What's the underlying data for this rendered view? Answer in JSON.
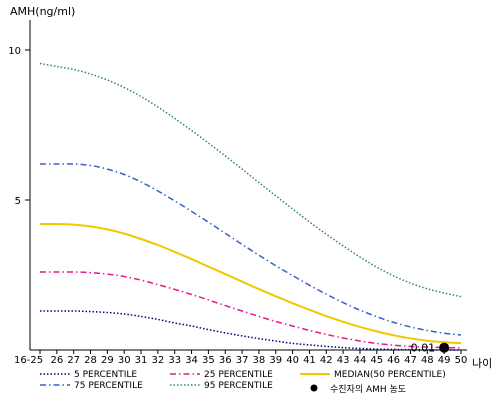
{
  "chart_data": {
    "type": "line",
    "ylabel": "AMH(ng/ml)",
    "xlabel": "나이",
    "ylim": [
      0,
      11
    ],
    "yticks": [
      5,
      10
    ],
    "x": [
      "16-25",
      "26",
      "27",
      "28",
      "29",
      "30",
      "31",
      "32",
      "33",
      "34",
      "35",
      "36",
      "37",
      "38",
      "39",
      "40",
      "41",
      "42",
      "43",
      "44",
      "45",
      "46",
      "47",
      "48",
      "49",
      "50"
    ],
    "series": [
      {
        "name": "5 PERCENTILE",
        "color": "#000080",
        "dash": "1.5,2",
        "values": [
          1.3,
          1.3,
          1.3,
          1.28,
          1.25,
          1.2,
          1.12,
          1.02,
          0.9,
          0.8,
          0.68,
          0.57,
          0.47,
          0.38,
          0.3,
          0.22,
          0.17,
          0.12,
          0.08,
          0.05,
          0.03,
          0.02,
          0.01,
          0.01,
          0.0,
          0.0
        ]
      },
      {
        "name": "25 PERCENTILE",
        "color": "#e6198c",
        "dash": "6,3,1.5,3",
        "values": [
          2.6,
          2.6,
          2.6,
          2.58,
          2.53,
          2.45,
          2.33,
          2.18,
          2.02,
          1.85,
          1.67,
          1.48,
          1.3,
          1.12,
          0.95,
          0.8,
          0.65,
          0.52,
          0.4,
          0.3,
          0.22,
          0.16,
          0.12,
          0.1,
          0.08,
          0.07
        ]
      },
      {
        "name": "MEDIAN(50 PERCENTILE)",
        "color": "#f0c800",
        "dash": "",
        "values": [
          4.2,
          4.2,
          4.18,
          4.12,
          4.02,
          3.88,
          3.7,
          3.5,
          3.27,
          3.03,
          2.78,
          2.53,
          2.28,
          2.03,
          1.79,
          1.56,
          1.34,
          1.13,
          0.94,
          0.77,
          0.62,
          0.49,
          0.39,
          0.31,
          0.26,
          0.23
        ]
      },
      {
        "name": "75 PERCENTILE",
        "color": "#3a5fc8",
        "dash": "6,3,1.5,3",
        "values": [
          6.2,
          6.2,
          6.2,
          6.15,
          6.03,
          5.85,
          5.6,
          5.3,
          4.97,
          4.62,
          4.26,
          3.89,
          3.52,
          3.16,
          2.81,
          2.48,
          2.16,
          1.86,
          1.58,
          1.33,
          1.11,
          0.92,
          0.77,
          0.65,
          0.56,
          0.5
        ]
      },
      {
        "name": "95 PERCENTILE",
        "color": "#2e8b57",
        "dash": "1.5,2",
        "values": [
          9.55,
          9.45,
          9.35,
          9.2,
          9.0,
          8.75,
          8.45,
          8.1,
          7.72,
          7.32,
          6.9,
          6.47,
          6.03,
          5.58,
          5.14,
          4.7,
          4.27,
          3.86,
          3.47,
          3.1,
          2.76,
          2.47,
          2.23,
          2.04,
          1.9,
          1.78
        ]
      }
    ],
    "patient": {
      "legend_label": "수진자의 AMH 농도",
      "x": "49",
      "value": 0.01,
      "label": "0.01",
      "color": "#000000"
    },
    "legend_position": "bottom",
    "grid": false
  }
}
